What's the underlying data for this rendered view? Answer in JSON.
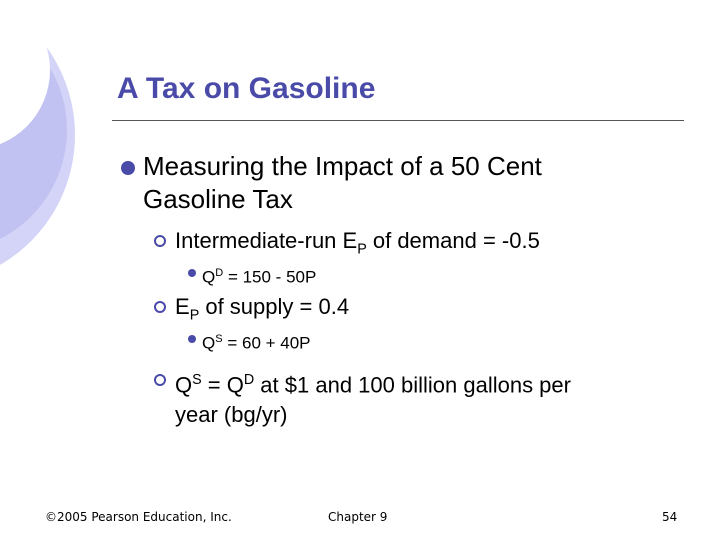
{
  "slide": {
    "title": "A Tax on Gasoline",
    "bullet_main": {
      "line1": "Measuring the Impact of a 50 Cent",
      "line2": "Gasoline Tax"
    },
    "sub1": {
      "prefix": "Intermediate-run E",
      "sub": "P",
      "suffix": " of demand = -0.5"
    },
    "sub1_detail": {
      "q": "Q",
      "sup": "D",
      "rest": " = 150 - 50P"
    },
    "sub2": {
      "prefix": "E",
      "sub": "P",
      "suffix": " of supply = 0.4"
    },
    "sub2_detail": {
      "q": "Q",
      "sup": "S",
      "rest": " = 60 + 40P"
    },
    "sub3": {
      "q1": "Q",
      "sup1": "S",
      "mid": " = Q",
      "sup2": "D",
      "rest": " at $1 and 100 billion gallons per",
      "line2": "year (bg/yr)"
    }
  },
  "footer": {
    "copyright": "©2005 Pearson Education, Inc.",
    "chapter": "Chapter 9",
    "page": "54"
  },
  "colors": {
    "accent": "#4a4aa8",
    "circle": "#c8c8f4"
  }
}
